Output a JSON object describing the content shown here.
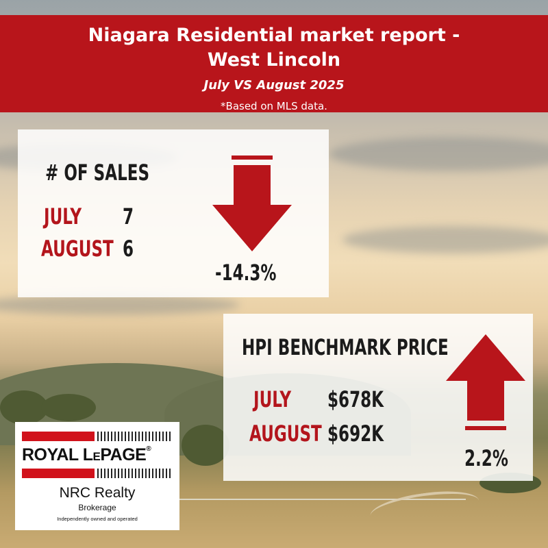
{
  "banner": {
    "title_line1": "Niagara Residential market report -",
    "title_line2": "West Lincoln",
    "period": "July VS August 2025",
    "source_note": "*Based on MLS data."
  },
  "sales": {
    "heading": "# OF SALES",
    "rows": [
      {
        "label": "JULY",
        "value": "7"
      },
      {
        "label": "AUGUST",
        "value": "6"
      }
    ],
    "change": "-14.3%",
    "direction": "down"
  },
  "hpi": {
    "heading": "HPI BENCHMARK PRICE",
    "rows": [
      {
        "label": "JULY",
        "value": "$678K"
      },
      {
        "label": "AUGUST",
        "value": "$692K"
      }
    ],
    "change": "2.2%",
    "direction": "up"
  },
  "logo": {
    "brand_left": "ROYAL L",
    "brand_small_e": "E",
    "brand_right": "PAGE",
    "registered": "®",
    "office": "NRC Realty",
    "type": "Brokerage",
    "tagline": "Independently owned and operated"
  },
  "colors": {
    "accent_red": "#b8151b",
    "label_red": "#b3151c",
    "text_dark": "#1b1b1b"
  }
}
